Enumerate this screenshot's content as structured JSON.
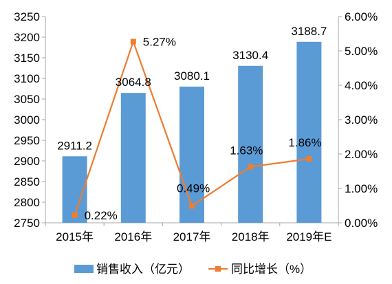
{
  "chart_data": {
    "type": "bar",
    "categories": [
      "2015年",
      "2016年",
      "2017年",
      "2018年",
      "2019年E"
    ],
    "series": [
      {
        "name": "销售收入（亿元）",
        "type": "bar",
        "axis": "left",
        "values": [
          2911.2,
          3064.8,
          3080.1,
          3130.4,
          3188.7
        ],
        "labels": [
          "2911.2",
          "3064.8",
          "3080.1",
          "3130.4",
          "3188.7"
        ],
        "color": "#5b9bd5"
      },
      {
        "name": "同比增长（%）",
        "type": "line",
        "axis": "right",
        "values": [
          0.22,
          5.27,
          0.49,
          1.63,
          1.86
        ],
        "labels": [
          "0.22%",
          "5.27%",
          "0.49%",
          "1.63%",
          "1.86%"
        ],
        "color": "#ed7d31"
      }
    ],
    "y_left": {
      "ylim": [
        2750,
        3250
      ],
      "ticks": [
        "2750",
        "2800",
        "2850",
        "2900",
        "2950",
        "3000",
        "3050",
        "3100",
        "3150",
        "3200",
        "3250"
      ]
    },
    "y_right": {
      "ylim": [
        0,
        6
      ],
      "ticks": [
        "0.00%",
        "1.00%",
        "2.00%",
        "3.00%",
        "4.00%",
        "5.00%",
        "6.00%"
      ]
    },
    "grid": false,
    "legend": "bottom"
  }
}
